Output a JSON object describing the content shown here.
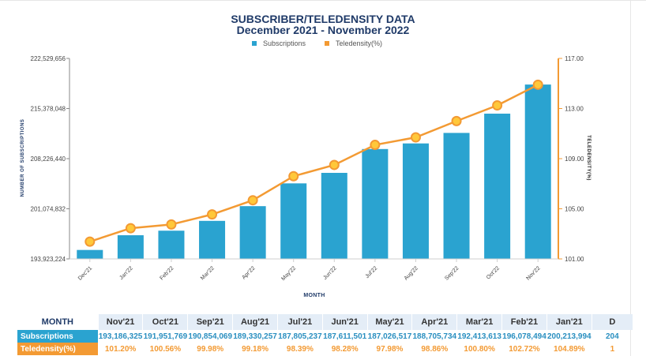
{
  "chart_data": {
    "type": "bar",
    "title": "SUBSCRIBER/TELEDENSITY DATA",
    "subtitle": "December 2021 - November 2022",
    "xlabel": "MONTH",
    "ylabel": "NUMBER OF SUBSCRIPTIONS",
    "y2label": "TELEDENSITY(%)",
    "categories": [
      "Dec'21",
      "Jan'22",
      "Feb'22",
      "Mar'22",
      "Apr'22",
      "May'22",
      "Jun'22",
      "Jul'22",
      "Aug'22",
      "Sep'22",
      "Oct'22",
      "Nov'22"
    ],
    "ylim": [
      193923224,
      222529656
    ],
    "yticks": [
      "193,923,224",
      "201,074,832",
      "208,226,440",
      "215,378,048",
      "222,529,656"
    ],
    "y2lim": [
      101.0,
      117.0
    ],
    "y2ticks": [
      "101.00",
      "105.00",
      "109.00",
      "113.00",
      "117.00"
    ],
    "series": [
      {
        "name": "Subscriptions",
        "kind": "bar",
        "color": "#2aa3d0",
        "values": [
          195200000,
          197300000,
          197950000,
          199350000,
          201450000,
          204700000,
          206200000,
          209600000,
          210400000,
          211900000,
          214650000,
          218800000
        ]
      },
      {
        "name": "Teledensity(%)",
        "kind": "line",
        "axis": "right",
        "color": "#f39a33",
        "values": [
          102.38,
          103.45,
          103.75,
          104.55,
          105.68,
          107.6,
          108.5,
          110.1,
          110.7,
          112.0,
          113.25,
          114.9
        ]
      }
    ],
    "legend": "top-center",
    "grid": false
  },
  "table": {
    "header_label": "MONTH",
    "columns": [
      "Nov'21",
      "Oct'21",
      "Sep'21",
      "Aug'21",
      "Jul'21",
      "Jun'21",
      "May'21",
      "Apr'21",
      "Mar'21",
      "Feb'21",
      "Jan'21",
      "D"
    ],
    "rows": [
      {
        "label": "Subscriptions",
        "values": [
          "193,186,325",
          "191,951,769",
          "190,854,069",
          "189,330,257",
          "187,805,237",
          "187,611,501",
          "187,026,517",
          "188,705,734",
          "192,413,613",
          "196,078,494",
          "200,213,994",
          "204"
        ]
      },
      {
        "label": "Teledensity(%)",
        "values": [
          "101.20%",
          "100.56%",
          "99.98%",
          "99.18%",
          "98.39%",
          "98.28%",
          "97.98%",
          "98.86%",
          "100.80%",
          "102.72%",
          "104.89%",
          "1"
        ]
      }
    ]
  }
}
